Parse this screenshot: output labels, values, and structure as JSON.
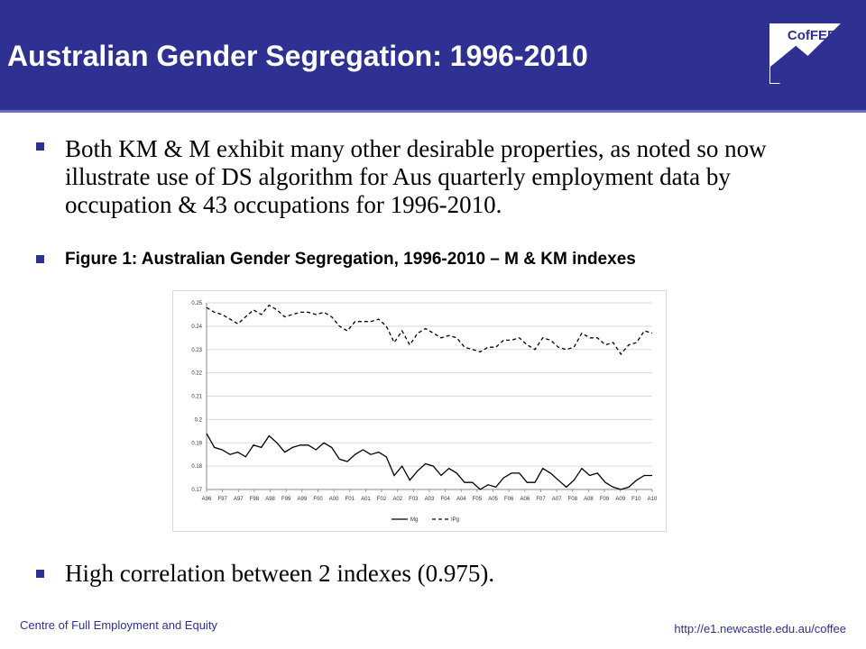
{
  "header": {
    "title": "Australian Gender Segregation: 1996-2010",
    "logo_text": "CofFEE",
    "bg_color": "#2e3192"
  },
  "bullets": [
    "Both KM & M exhibit many other desirable properties, as noted so now illustrate use of DS algorithm for Aus quarterly employment  data by occupation & 43 occupations for 1996-2010.",
    "Figure 1: Australian Gender Segregation, 1996-2010 – M & KM indexes",
    "High correlation between 2 indexes (0.975)."
  ],
  "footer": {
    "left": "Centre of Full Employment and Equity",
    "right": "http://e1.newcastle.edu.au/coffee"
  },
  "chart_data": {
    "type": "line",
    "ylim": [
      0.17,
      0.25
    ],
    "yticks": [
      "0.17",
      "0.18",
      "0.19",
      "0.2",
      "0.21",
      "0.22",
      "0.23",
      "0.24",
      "0.25"
    ],
    "xtick_labels": [
      "A96",
      "F97",
      "A97",
      "F98",
      "A98",
      "F99",
      "A99",
      "F00",
      "A00",
      "F01",
      "A01",
      "F02",
      "A02",
      "F03",
      "A03",
      "F04",
      "A04",
      "F05",
      "A05",
      "F06",
      "A06",
      "F07",
      "A07",
      "F08",
      "A08",
      "F09",
      "A09",
      "F10",
      "A10"
    ],
    "series": [
      {
        "name": "Mg",
        "style": "solid",
        "values": [
          0.194,
          0.188,
          0.187,
          0.185,
          0.186,
          0.184,
          0.189,
          0.188,
          0.193,
          0.19,
          0.186,
          0.188,
          0.189,
          0.189,
          0.187,
          0.19,
          0.188,
          0.183,
          0.182,
          0.185,
          0.187,
          0.185,
          0.186,
          0.184,
          0.176,
          0.18,
          0.174,
          0.178,
          0.181,
          0.18,
          0.176,
          0.179,
          0.177,
          0.173,
          0.173,
          0.17,
          0.172,
          0.171,
          0.175,
          0.177,
          0.177,
          0.173,
          0.173,
          0.179,
          0.177,
          0.174,
          0.171,
          0.174,
          0.179,
          0.176,
          0.177,
          0.173,
          0.171,
          0.17,
          0.171,
          0.174,
          0.176,
          0.176
        ]
      },
      {
        "name": "IPg",
        "style": "dashed",
        "values": [
          0.248,
          0.246,
          0.245,
          0.243,
          0.241,
          0.244,
          0.247,
          0.245,
          0.249,
          0.247,
          0.244,
          0.245,
          0.246,
          0.246,
          0.245,
          0.246,
          0.244,
          0.24,
          0.238,
          0.242,
          0.242,
          0.242,
          0.243,
          0.24,
          0.233,
          0.238,
          0.232,
          0.237,
          0.239,
          0.237,
          0.235,
          0.236,
          0.235,
          0.231,
          0.23,
          0.229,
          0.231,
          0.231,
          0.234,
          0.234,
          0.235,
          0.232,
          0.23,
          0.235,
          0.234,
          0.231,
          0.23,
          0.231,
          0.237,
          0.235,
          0.235,
          0.232,
          0.233,
          0.228,
          0.232,
          0.233,
          0.238,
          0.237
        ]
      }
    ]
  }
}
